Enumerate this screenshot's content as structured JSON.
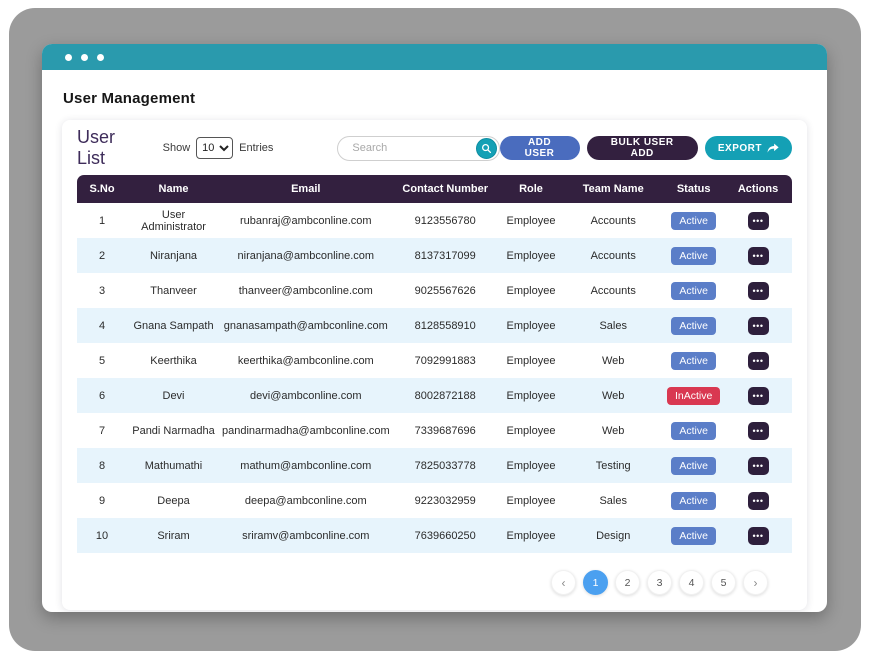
{
  "page": {
    "title": "User Management"
  },
  "card": {
    "title": "User List",
    "show_label": "Show",
    "entries_label": "Entries",
    "entries_selected": "10",
    "search_placeholder": "Search",
    "buttons": {
      "add_user": "ADD USER",
      "bulk_user_add": "BULK USER ADD",
      "export": "EXPORT"
    }
  },
  "table": {
    "columns": [
      "S.No",
      "Name",
      "Email",
      "Contact Number",
      "Role",
      "Team Name",
      "Status",
      "Actions"
    ],
    "rows": [
      {
        "sno": "1",
        "name": "User Administrator",
        "email": "rubanraj@ambconline.com",
        "contact": "9123556780",
        "role": "Employee",
        "team": "Accounts",
        "status": "Active"
      },
      {
        "sno": "2",
        "name": "Niranjana",
        "email": "niranjana@ambconline.com",
        "contact": "8137317099",
        "role": "Employee",
        "team": "Accounts",
        "status": "Active"
      },
      {
        "sno": "3",
        "name": "Thanveer",
        "email": "thanveer@ambconline.com",
        "contact": "9025567626",
        "role": "Employee",
        "team": "Accounts",
        "status": "Active"
      },
      {
        "sno": "4",
        "name": "Gnana Sampath",
        "email": "gnanasampath@ambconline.com",
        "contact": "8128558910",
        "role": "Employee",
        "team": "Sales",
        "status": "Active"
      },
      {
        "sno": "5",
        "name": "Keerthika",
        "email": "keerthika@ambconline.com",
        "contact": "7092991883",
        "role": "Employee",
        "team": "Web",
        "status": "Active"
      },
      {
        "sno": "6",
        "name": "Devi",
        "email": "devi@ambconline.com",
        "contact": "8002872188",
        "role": "Employee",
        "team": "Web",
        "status": "InActive"
      },
      {
        "sno": "7",
        "name": "Pandi Narmadha",
        "email": "pandinarmadha@ambconline.com",
        "contact": "7339687696",
        "role": "Employee",
        "team": "Web",
        "status": "Active"
      },
      {
        "sno": "8",
        "name": "Mathumathi",
        "email": "mathum@ambconline.com",
        "contact": "7825033778",
        "role": "Employee",
        "team": "Testing",
        "status": "Active"
      },
      {
        "sno": "9",
        "name": "Deepa",
        "email": "deepa@ambconline.com",
        "contact": "9223032959",
        "role": "Employee",
        "team": "Sales",
        "status": "Active"
      },
      {
        "sno": "10",
        "name": "Sriram",
        "email": "sriramv@ambconline.com",
        "contact": "7639660250",
        "role": "Employee",
        "team": "Design",
        "status": "Active"
      }
    ],
    "actions_icon": "•••"
  },
  "pagination": {
    "prev": "‹",
    "next": "›",
    "pages": [
      "1",
      "2",
      "3",
      "4",
      "5"
    ],
    "active": "1"
  },
  "colors": {
    "titlebar_teal": "#2a9aad",
    "header_purple": "#33203f",
    "active_badge_blue": "#5b7ec8",
    "inactive_badge_red": "#d93851",
    "add_user_blue": "#4a6cbe",
    "export_teal": "#14a0b5",
    "pagination_active_blue": "#4ba0f0",
    "row_stripe": "#e7f4fc",
    "frame_gray": "#9b9b9b"
  }
}
